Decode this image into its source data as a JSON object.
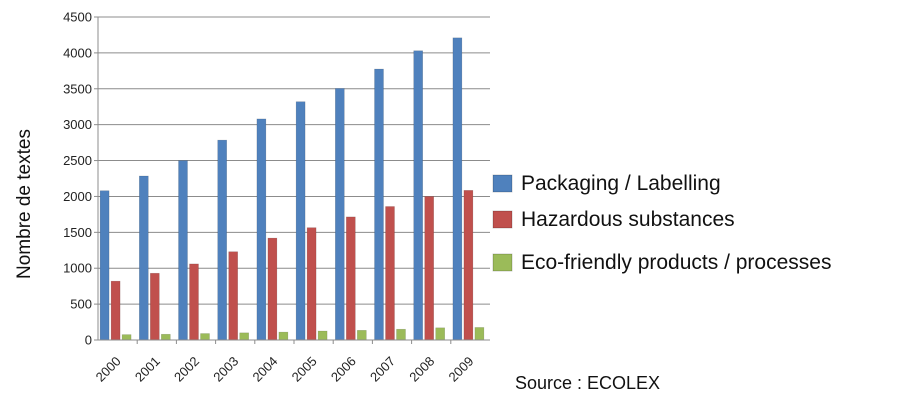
{
  "chart_data": {
    "type": "bar",
    "title": "",
    "xlabel": "",
    "ylabel": "Nombre de textes",
    "ylim": [
      0,
      4500
    ],
    "yticks": [
      0,
      500,
      1000,
      1500,
      2000,
      2500,
      3000,
      3500,
      4000,
      4500
    ],
    "grid": true,
    "legend_position": "right",
    "categories": [
      "2000",
      "2001",
      "2002",
      "2003",
      "2004",
      "2005",
      "2006",
      "2007",
      "2008",
      "2009"
    ],
    "series": [
      {
        "name": "Packaging / Labelling",
        "color": "#4F81BD",
        "values": [
          2080,
          2285,
          2500,
          2785,
          3080,
          3320,
          3505,
          3775,
          4030,
          4210
        ]
      },
      {
        "name": "Hazardous substances",
        "color": "#C0504D",
        "values": [
          820,
          930,
          1060,
          1230,
          1420,
          1565,
          1715,
          1860,
          2000,
          2085
        ]
      },
      {
        "name": "Eco-friendly products / processes",
        "color": "#9BBB59",
        "values": [
          75,
          80,
          90,
          100,
          110,
          125,
          135,
          150,
          170,
          175
        ]
      }
    ],
    "source": "Source : ECOLEX"
  }
}
